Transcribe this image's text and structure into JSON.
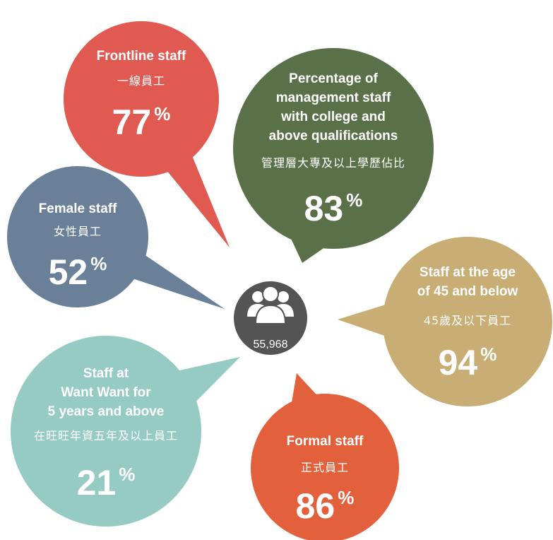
{
  "center": {
    "count": "55,968"
  },
  "bubbles": [
    {
      "title_lines": [
        "Frontline staff"
      ],
      "chinese": "一線員工",
      "value": 77,
      "unit": "%"
    },
    {
      "title_lines": [
        "Percentage of",
        "management staff",
        "with college and",
        "above qualifications"
      ],
      "chinese": "管理層大專及以上學歷佔比",
      "value": 83,
      "unit": "%"
    },
    {
      "title_lines": [
        "Female staff"
      ],
      "chinese": "女性員工",
      "value": 52,
      "unit": "%"
    },
    {
      "title_lines": [
        "Staff at the age",
        "of 45 and below"
      ],
      "chinese": "45歲及以下員工",
      "value": 94,
      "unit": "%"
    },
    {
      "title_lines": [
        "Staff at",
        "Want Want for",
        "5 years and above"
      ],
      "chinese": "在旺旺年資五年及以上員工",
      "value": 21,
      "unit": "%"
    },
    {
      "title_lines": [
        "Formal staff"
      ],
      "chinese": "正式員工",
      "value": 86,
      "unit": "%"
    }
  ]
}
